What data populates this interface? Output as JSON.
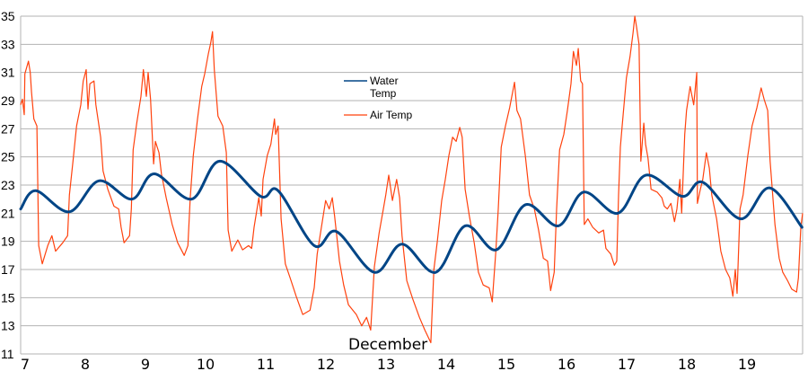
{
  "chart_data": {
    "type": "line",
    "title": "",
    "xlabel": "December",
    "ylabel": "",
    "xlim": [
      7,
      20
    ],
    "ylim": [
      11,
      35
    ],
    "x_ticks": [
      7,
      8,
      9,
      10,
      11,
      12,
      13,
      14,
      15,
      16,
      17,
      18,
      19
    ],
    "y_ticks": [
      11,
      13,
      15,
      17,
      19,
      21,
      23,
      25,
      27,
      29,
      31,
      33,
      35
    ],
    "grid": "horizontal",
    "legend_position": "top-center",
    "series": [
      {
        "name": "Water Temp",
        "color": "#004586",
        "x": [
          7.0,
          7.25,
          7.81,
          8.3,
          8.85,
          9.22,
          9.84,
          10.31,
          10.99,
          11.28,
          11.88,
          12.25,
          12.88,
          13.34,
          13.9,
          14.39,
          14.91,
          15.39,
          15.94,
          16.36,
          16.93,
          17.39,
          18.0,
          18.34,
          18.97,
          19.45,
          19.99
        ],
        "y": [
          21.3,
          22.6,
          21.1,
          23.3,
          22.0,
          23.8,
          22.0,
          24.7,
          22.2,
          22.6,
          18.7,
          19.7,
          16.8,
          18.8,
          16.8,
          20.1,
          18.4,
          21.6,
          20.1,
          22.5,
          21.0,
          23.7,
          22.2,
          23.2,
          20.6,
          22.8,
          20.0
        ]
      },
      {
        "name": "Air Temp",
        "color": "#ff420e",
        "x": [
          7.0,
          7.03,
          7.06,
          7.07,
          7.13,
          7.16,
          7.18,
          7.22,
          7.27,
          7.3,
          7.36,
          7.45,
          7.52,
          7.58,
          7.7,
          7.78,
          7.81,
          7.87,
          7.93,
          8.0,
          8.04,
          8.09,
          8.12,
          8.15,
          8.22,
          8.25,
          8.33,
          8.37,
          8.45,
          8.55,
          8.63,
          8.67,
          8.72,
          8.81,
          8.84,
          8.87,
          8.93,
          9.0,
          9.04,
          9.09,
          9.12,
          9.16,
          9.21,
          9.24,
          9.3,
          9.34,
          9.42,
          9.52,
          9.61,
          9.72,
          9.78,
          9.82,
          9.87,
          9.94,
          10.01,
          10.06,
          10.12,
          10.16,
          10.19,
          10.22,
          10.28,
          10.36,
          10.42,
          10.45,
          10.51,
          10.61,
          10.69,
          10.79,
          10.84,
          10.88,
          10.96,
          11.0,
          11.03,
          11.1,
          11.16,
          11.22,
          11.24,
          11.28,
          11.33,
          11.4,
          11.48,
          11.58,
          11.69,
          11.81,
          11.88,
          11.93,
          12.0,
          12.07,
          12.13,
          12.18,
          12.22,
          12.3,
          12.37,
          12.45,
          12.58,
          12.67,
          12.75,
          12.82,
          12.88,
          12.96,
          13.03,
          13.07,
          13.12,
          13.18,
          13.25,
          13.3,
          13.34,
          13.42,
          13.52,
          13.63,
          13.72,
          13.82,
          13.87,
          13.93,
          14.0,
          14.06,
          14.12,
          14.18,
          14.24,
          14.3,
          14.34,
          14.39,
          14.46,
          14.54,
          14.61,
          14.69,
          14.79,
          14.84,
          14.9,
          14.94,
          14.99,
          15.06,
          15.13,
          15.21,
          15.25,
          15.31,
          15.39,
          15.46,
          15.54,
          15.61,
          15.69,
          15.76,
          15.81,
          15.87,
          15.91,
          15.96,
          16.03,
          16.09,
          16.15,
          16.19,
          16.24,
          16.27,
          16.31,
          16.34,
          16.37,
          16.43,
          16.51,
          16.61,
          16.69,
          16.73,
          16.81,
          16.87,
          16.91,
          16.94,
          16.97,
          17.0,
          17.07,
          17.13,
          17.18,
          17.21,
          17.24,
          17.28,
          17.31,
          17.36,
          17.39,
          17.43,
          17.48,
          17.58,
          17.66,
          17.7,
          17.75,
          17.81,
          17.87,
          17.91,
          17.96,
          17.99,
          18.04,
          18.07,
          18.13,
          18.19,
          18.24,
          18.25,
          18.3,
          18.34,
          18.4,
          18.45,
          18.49,
          18.57,
          18.64,
          18.72,
          18.79,
          18.84,
          18.88,
          18.91,
          18.96,
          19.01,
          19.09,
          19.16,
          19.24,
          19.31,
          19.36,
          19.42,
          19.46,
          19.54,
          19.61,
          19.67,
          19.75,
          19.82,
          19.9,
          19.93,
          19.97,
          20.0
        ],
        "y": [
          28.7,
          29.1,
          28.0,
          30.9,
          31.8,
          31.0,
          29.6,
          27.7,
          27.2,
          18.7,
          17.4,
          18.7,
          19.4,
          18.3,
          18.9,
          19.4,
          22.3,
          24.7,
          27.2,
          28.7,
          30.4,
          31.2,
          28.4,
          30.2,
          30.4,
          28.7,
          26.4,
          24.0,
          22.7,
          21.5,
          21.3,
          20.0,
          18.9,
          19.4,
          21.3,
          25.5,
          27.4,
          29.3,
          31.2,
          29.3,
          31.0,
          29.1,
          24.5,
          26.1,
          25.3,
          23.8,
          22.1,
          20.2,
          18.9,
          18.0,
          18.7,
          22.1,
          25.1,
          27.7,
          30.0,
          30.9,
          32.3,
          33.1,
          33.9,
          31.2,
          27.9,
          27.2,
          25.3,
          19.8,
          18.3,
          19.1,
          18.4,
          18.7,
          18.5,
          20.0,
          22.1,
          20.8,
          23.4,
          25.1,
          25.9,
          27.7,
          26.6,
          27.2,
          20.6,
          17.4,
          16.4,
          15.1,
          13.8,
          14.1,
          15.7,
          18.1,
          20.0,
          21.9,
          21.3,
          22.1,
          20.8,
          17.6,
          15.9,
          14.5,
          13.8,
          13.0,
          13.6,
          12.7,
          17.2,
          19.6,
          21.3,
          22.3,
          23.7,
          21.9,
          23.4,
          22.1,
          19.4,
          16.2,
          14.9,
          13.6,
          12.7,
          11.8,
          17.0,
          19.1,
          21.9,
          23.4,
          25.1,
          26.4,
          26.1,
          27.1,
          26.4,
          22.7,
          20.8,
          18.9,
          16.8,
          15.9,
          15.7,
          14.7,
          18.3,
          21.3,
          25.7,
          27.2,
          28.5,
          30.3,
          28.3,
          27.7,
          25.1,
          22.3,
          21.3,
          19.8,
          17.8,
          17.6,
          15.5,
          16.8,
          21.3,
          25.5,
          26.6,
          28.3,
          30.2,
          32.5,
          31.5,
          32.7,
          30.4,
          30.2,
          20.2,
          20.6,
          20.0,
          19.6,
          19.8,
          18.5,
          18.1,
          17.3,
          17.6,
          22.3,
          25.7,
          27.2,
          30.6,
          32.1,
          33.8,
          35.0,
          34.2,
          33.0,
          24.7,
          27.4,
          25.9,
          24.9,
          22.7,
          22.5,
          22.1,
          21.5,
          21.3,
          21.7,
          20.4,
          21.3,
          23.4,
          21.0,
          26.6,
          28.3,
          30.0,
          28.7,
          31.0,
          21.7,
          22.7,
          23.4,
          25.3,
          24.2,
          22.3,
          20.6,
          18.3,
          17.0,
          16.4,
          15.1,
          17.0,
          15.3,
          21.3,
          22.3,
          25.1,
          27.2,
          28.5,
          29.9,
          29.1,
          28.3,
          24.7,
          20.2,
          17.8,
          16.8,
          16.2,
          15.6,
          15.4,
          16.4,
          20.0,
          21.0
        ]
      }
    ],
    "legend": {
      "water_line1": "Water",
      "water_line2": "Temp",
      "air": "Air Temp"
    },
    "y_tick_labels": [
      "11",
      "13",
      "15",
      "17",
      "19",
      "21",
      "23",
      "25",
      "27",
      "29",
      "31",
      "33",
      "35"
    ],
    "x_tick_labels": [
      "7",
      "8",
      "9",
      "10",
      "11",
      "12",
      "13",
      "14",
      "15",
      "16",
      "17",
      "18",
      "19"
    ]
  }
}
